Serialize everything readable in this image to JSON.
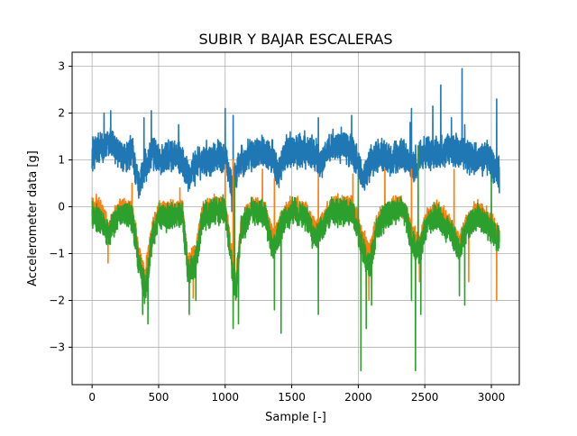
{
  "chart_data": {
    "type": "line",
    "title": "SUBIR Y BAJAR ESCALERAS",
    "xlabel": "Sample [-]",
    "ylabel": "Accelerometer data [g]",
    "xlim": [
      -150,
      3210
    ],
    "ylim": [
      -3.8,
      3.3
    ],
    "xticks": [
      0,
      500,
      1000,
      1500,
      2000,
      2500,
      3000
    ],
    "xtick_labels": [
      "0",
      "500",
      "1000",
      "1500",
      "2000",
      "2500",
      "3000"
    ],
    "yticks": [
      3,
      2,
      1,
      0,
      -1,
      -2,
      -3
    ],
    "ytick_labels": [
      "3",
      "2",
      "1",
      "0",
      "−1",
      "−2",
      "−3"
    ],
    "grid": true,
    "legend": "none",
    "x_range": [
      0,
      3060
    ],
    "colors": [
      "#1f77b4",
      "#ff7f0e",
      "#2ca02c"
    ],
    "series": [
      {
        "color": "#1f77b4",
        "anchors": [
          [
            0,
            1.1
          ],
          [
            80,
            1.3
          ],
          [
            150,
            1.3
          ],
          [
            230,
            1.0
          ],
          [
            300,
            1.2
          ],
          [
            350,
            0.5
          ],
          [
            400,
            0.8
          ],
          [
            450,
            1.2
          ],
          [
            520,
            1.0
          ],
          [
            600,
            1.1
          ],
          [
            680,
            1.0
          ],
          [
            720,
            0.6
          ],
          [
            780,
            0.9
          ],
          [
            860,
            1.0
          ],
          [
            940,
            1.1
          ],
          [
            1010,
            1.0
          ],
          [
            1050,
            0.4
          ],
          [
            1100,
            0.9
          ],
          [
            1180,
            1.1
          ],
          [
            1260,
            1.2
          ],
          [
            1350,
            1.1
          ],
          [
            1400,
            0.7
          ],
          [
            1460,
            1.2
          ],
          [
            1550,
            1.2
          ],
          [
            1650,
            1.2
          ],
          [
            1720,
            0.9
          ],
          [
            1780,
            1.3
          ],
          [
            1880,
            1.3
          ],
          [
            1960,
            1.2
          ],
          [
            2040,
            0.6
          ],
          [
            2100,
            1.0
          ],
          [
            2180,
            1.1
          ],
          [
            2260,
            1.0
          ],
          [
            2340,
            1.1
          ],
          [
            2420,
            0.8
          ],
          [
            2480,
            1.2
          ],
          [
            2560,
            1.1
          ],
          [
            2640,
            1.2
          ],
          [
            2720,
            1.2
          ],
          [
            2800,
            1.1
          ],
          [
            2880,
            1.0
          ],
          [
            2960,
            1.1
          ],
          [
            3060,
            0.7
          ]
        ],
        "noise": 0.3,
        "spikes": [
          [
            90,
            2.0
          ],
          [
            140,
            2.05
          ],
          [
            390,
            1.9
          ],
          [
            445,
            2.05
          ],
          [
            650,
            1.75
          ],
          [
            1000,
            2.1
          ],
          [
            1050,
            -0.1
          ],
          [
            1060,
            1.95
          ],
          [
            1700,
            1.9
          ],
          [
            1950,
            1.95
          ],
          [
            2390,
            1.8
          ],
          [
            2400,
            2.1
          ],
          [
            2560,
            2.15
          ],
          [
            2620,
            2.6
          ],
          [
            2700,
            1.9
          ],
          [
            2780,
            2.95
          ],
          [
            2800,
            1.75
          ],
          [
            3040,
            2.3
          ]
        ]
      },
      {
        "color": "#ff7f0e",
        "anchors": [
          [
            0,
            0.0
          ],
          [
            60,
            0.0
          ],
          [
            120,
            -0.5
          ],
          [
            160,
            -0.3
          ],
          [
            220,
            0.0
          ],
          [
            300,
            -0.1
          ],
          [
            350,
            -1.0
          ],
          [
            400,
            -1.5
          ],
          [
            450,
            -0.5
          ],
          [
            500,
            -0.1
          ],
          [
            600,
            -0.1
          ],
          [
            680,
            -0.1
          ],
          [
            720,
            -1.2
          ],
          [
            780,
            -1.0
          ],
          [
            830,
            -0.1
          ],
          [
            930,
            0.0
          ],
          [
            1000,
            0.0
          ],
          [
            1040,
            -0.9
          ],
          [
            1080,
            -1.6
          ],
          [
            1120,
            -0.4
          ],
          [
            1200,
            0.0
          ],
          [
            1300,
            -0.1
          ],
          [
            1360,
            -0.7
          ],
          [
            1420,
            -0.3
          ],
          [
            1500,
            0.0
          ],
          [
            1600,
            -0.1
          ],
          [
            1680,
            -0.5
          ],
          [
            1720,
            -0.4
          ],
          [
            1800,
            0.0
          ],
          [
            1900,
            0.0
          ],
          [
            1960,
            0.0
          ],
          [
            2020,
            -0.6
          ],
          [
            2080,
            -1.0
          ],
          [
            2150,
            -0.3
          ],
          [
            2250,
            0.0
          ],
          [
            2350,
            0.0
          ],
          [
            2400,
            -0.6
          ],
          [
            2460,
            -0.8
          ],
          [
            2520,
            -0.2
          ],
          [
            2600,
            -0.1
          ],
          [
            2680,
            -0.4
          ],
          [
            2760,
            -0.8
          ],
          [
            2820,
            -0.3
          ],
          [
            2900,
            -0.1
          ],
          [
            2980,
            -0.3
          ],
          [
            3060,
            -0.6
          ]
        ],
        "noise": 0.2,
        "spikes": [
          [
            0,
            0.2
          ],
          [
            120,
            -1.2
          ],
          [
            300,
            0.5
          ],
          [
            420,
            -1.95
          ],
          [
            660,
            0.4
          ],
          [
            760,
            -1.95
          ],
          [
            1000,
            0.9
          ],
          [
            1060,
            1.0
          ],
          [
            1080,
            -2.0
          ],
          [
            1280,
            0.8
          ],
          [
            1370,
            0.6
          ],
          [
            1700,
            0.7
          ],
          [
            1960,
            0.7
          ],
          [
            2080,
            -2.0
          ],
          [
            2200,
            0.8
          ],
          [
            2400,
            0.8
          ],
          [
            2460,
            -1.6
          ],
          [
            2720,
            0.8
          ],
          [
            2830,
            -1.6
          ],
          [
            3040,
            -2.0
          ]
        ]
      },
      {
        "color": "#2ca02c",
        "anchors": [
          [
            0,
            -0.2
          ],
          [
            60,
            -0.3
          ],
          [
            120,
            -0.6
          ],
          [
            160,
            -0.4
          ],
          [
            220,
            -0.1
          ],
          [
            300,
            -0.2
          ],
          [
            350,
            -1.2
          ],
          [
            400,
            -1.8
          ],
          [
            450,
            -0.7
          ],
          [
            500,
            -0.2
          ],
          [
            600,
            -0.2
          ],
          [
            680,
            -0.2
          ],
          [
            720,
            -1.4
          ],
          [
            780,
            -1.2
          ],
          [
            830,
            -0.2
          ],
          [
            930,
            -0.1
          ],
          [
            1000,
            -0.1
          ],
          [
            1040,
            -1.0
          ],
          [
            1080,
            -1.8
          ],
          [
            1120,
            -0.5
          ],
          [
            1200,
            -0.1
          ],
          [
            1300,
            -0.2
          ],
          [
            1360,
            -0.9
          ],
          [
            1420,
            -0.4
          ],
          [
            1500,
            -0.1
          ],
          [
            1600,
            -0.2
          ],
          [
            1680,
            -0.7
          ],
          [
            1720,
            -0.5
          ],
          [
            1800,
            -0.1
          ],
          [
            1900,
            -0.1
          ],
          [
            1960,
            -0.1
          ],
          [
            2020,
            -0.8
          ],
          [
            2080,
            -1.3
          ],
          [
            2150,
            -0.4
          ],
          [
            2250,
            -0.1
          ],
          [
            2350,
            -0.1
          ],
          [
            2400,
            -0.7
          ],
          [
            2460,
            -1.0
          ],
          [
            2520,
            -0.3
          ],
          [
            2600,
            -0.2
          ],
          [
            2680,
            -0.5
          ],
          [
            2760,
            -0.9
          ],
          [
            2820,
            -0.4
          ],
          [
            2900,
            -0.2
          ],
          [
            2980,
            -0.4
          ],
          [
            3060,
            -0.7
          ]
        ],
        "noise": 0.25,
        "spikes": [
          [
            380,
            -2.3
          ],
          [
            420,
            -2.5
          ],
          [
            730,
            -2.3
          ],
          [
            780,
            -2.0
          ],
          [
            1060,
            -2.6
          ],
          [
            1070,
            0.6
          ],
          [
            1100,
            -2.5
          ],
          [
            1370,
            -2.2
          ],
          [
            1420,
            -2.7
          ],
          [
            1700,
            -2.3
          ],
          [
            2000,
            0.6
          ],
          [
            2020,
            -3.5
          ],
          [
            2060,
            -2.6
          ],
          [
            2100,
            -2.1
          ],
          [
            2400,
            -2.0
          ],
          [
            2430,
            -3.5
          ],
          [
            2450,
            1.3
          ],
          [
            2470,
            -2.3
          ],
          [
            2760,
            -1.9
          ],
          [
            2800,
            -2.1
          ],
          [
            3000,
            0.7
          ]
        ]
      }
    ]
  }
}
